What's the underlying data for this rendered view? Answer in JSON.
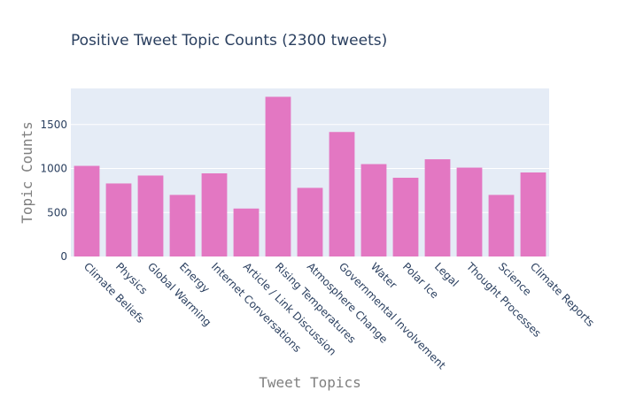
{
  "chart_data": {
    "type": "bar",
    "title": "Positive Tweet Topic Counts (2300 tweets)",
    "xlabel": "Tweet Topics",
    "ylabel": "Topic Counts",
    "categories": [
      "Climate Beliefs",
      "Physics",
      "Global Warming",
      "Energy",
      "Internet Conversations",
      "Article / Link Discussion",
      "Rising Temperatures",
      "Atmosphere Change",
      "Governmental Involvement",
      "Water",
      "Polar Ice",
      "Legal",
      "Thought Processes",
      "Science",
      "Climate Reports"
    ],
    "values": [
      1030,
      830,
      920,
      700,
      945,
      545,
      1815,
      780,
      1415,
      1050,
      895,
      1105,
      1010,
      700,
      955
    ],
    "ylim": [
      0,
      1910
    ],
    "yticks": [
      0,
      500,
      1000,
      1500
    ],
    "grid": true,
    "colors": {
      "bar": "#e377c2",
      "plot_bg": "#e5ecf6",
      "grid": "#ffffff",
      "text": "#2a3f5f",
      "axis_title": "#7f7f7f"
    }
  }
}
